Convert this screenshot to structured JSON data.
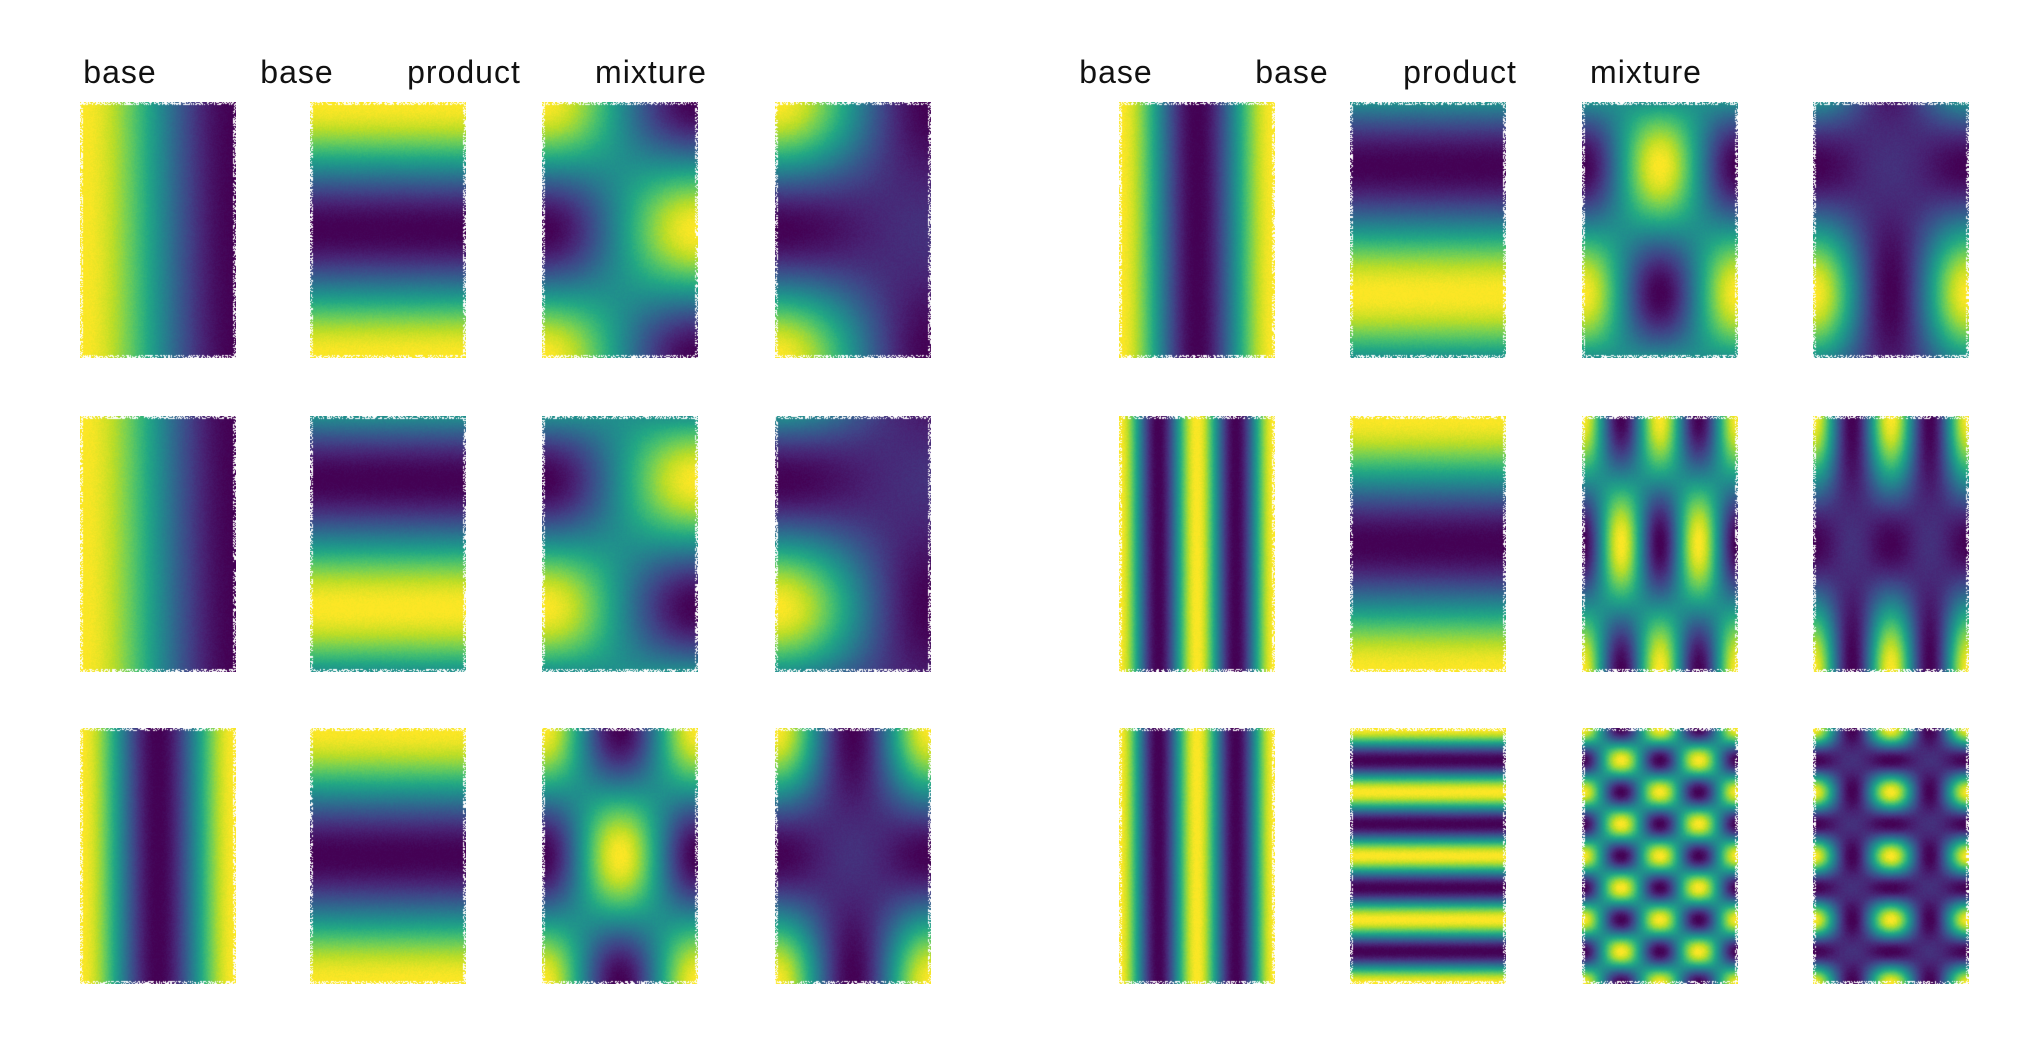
{
  "colormap": "viridis",
  "colors": {
    "viridis_low": "#440154",
    "viridis_mid": "#21918c",
    "viridis_high": "#fde725",
    "background": "#ffffff",
    "title_text": "#111111"
  },
  "groups": [
    {
      "column_titles": [
        "base",
        "base",
        "product",
        "mixture"
      ],
      "rows": [
        {
          "panels": [
            {
              "kind": "base",
              "fx": [
                {
                  "axis": "x",
                  "freq": 0.5,
                  "phase": 0
                }
              ]
            },
            {
              "kind": "base",
              "fx": [
                {
                  "axis": "y",
                  "freq": 1,
                  "phase": 0
                }
              ]
            },
            {
              "kind": "product"
            },
            {
              "kind": "mixture"
            }
          ]
        },
        {
          "panels": [
            {
              "kind": "base",
              "fx": [
                {
                  "axis": "x",
                  "freq": 0.5,
                  "phase": 0
                }
              ]
            },
            {
              "kind": "base",
              "fx": [
                {
                  "axis": "y",
                  "freq": 1,
                  "phase": 0.5
                }
              ]
            },
            {
              "kind": "product"
            },
            {
              "kind": "mixture"
            }
          ]
        },
        {
          "panels": [
            {
              "kind": "base",
              "fx": [
                {
                  "axis": "x",
                  "freq": 1,
                  "phase": 0
                }
              ]
            },
            {
              "kind": "base",
              "fx": [
                {
                  "axis": "y",
                  "freq": 1,
                  "phase": 0
                }
              ]
            },
            {
              "kind": "product"
            },
            {
              "kind": "mixture"
            }
          ]
        }
      ]
    },
    {
      "column_titles": [
        "base",
        "base",
        "product",
        "mixture"
      ],
      "rows": [
        {
          "panels": [
            {
              "kind": "base",
              "fx": [
                {
                  "axis": "x",
                  "freq": 1,
                  "phase": 0
                }
              ]
            },
            {
              "kind": "base",
              "fx": [
                {
                  "axis": "y",
                  "freq": 1,
                  "phase": 0.5
                }
              ]
            },
            {
              "kind": "product"
            },
            {
              "kind": "mixture"
            }
          ]
        },
        {
          "panels": [
            {
              "kind": "base",
              "fx": [
                {
                  "axis": "x",
                  "freq": 2,
                  "phase": 0
                }
              ]
            },
            {
              "kind": "base",
              "fx": [
                {
                  "axis": "y",
                  "freq": 1,
                  "phase": 0
                }
              ]
            },
            {
              "kind": "product"
            },
            {
              "kind": "mixture"
            }
          ]
        },
        {
          "panels": [
            {
              "kind": "base",
              "fx": [
                {
                  "axis": "x",
                  "freq": 2,
                  "phase": 0
                }
              ]
            },
            {
              "kind": "base",
              "fx": [
                {
                  "axis": "y",
                  "freq": 4,
                  "phase": 0
                }
              ]
            },
            {
              "kind": "product"
            },
            {
              "kind": "mixture"
            }
          ]
        }
      ]
    }
  ]
}
